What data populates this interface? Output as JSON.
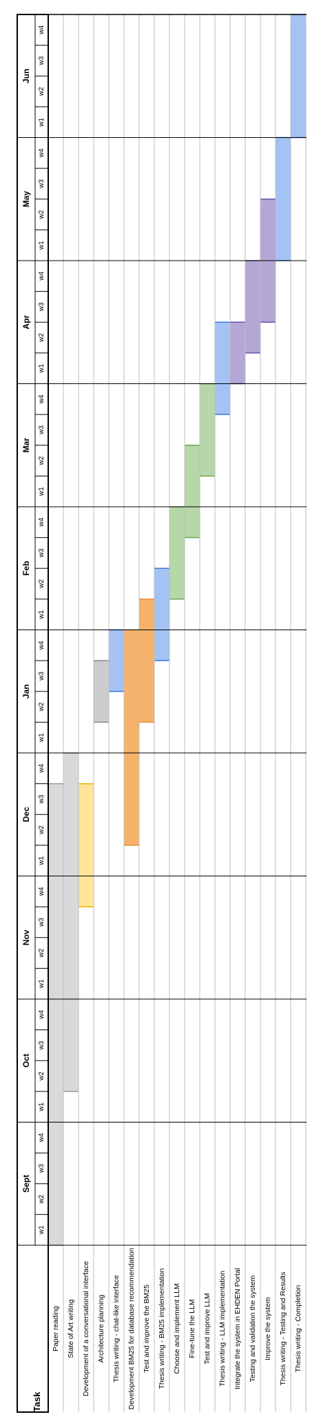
{
  "chart_data": {
    "type": "gantt",
    "task_header": "Task",
    "months": [
      {
        "label": "Sept",
        "weeks": [
          "w1",
          "w2",
          "w3",
          "w4"
        ]
      },
      {
        "label": "Oct",
        "weeks": [
          "w1",
          "w2",
          "w3",
          "w4"
        ]
      },
      {
        "label": "Nov",
        "weeks": [
          "w1",
          "w2",
          "w3",
          "w4"
        ]
      },
      {
        "label": "Dec",
        "weeks": [
          "w1",
          "w2",
          "w3",
          "w4"
        ]
      },
      {
        "label": "Jan",
        "weeks": [
          "w1",
          "w2",
          "w3",
          "w4"
        ]
      },
      {
        "label": "Feb",
        "weeks": [
          "w1",
          "w2",
          "w3",
          "w4"
        ]
      },
      {
        "label": "Mar",
        "weeks": [
          "w1",
          "w2",
          "w3",
          "w4"
        ]
      },
      {
        "label": "Apr",
        "weeks": [
          "w1",
          "w2",
          "w3",
          "w4"
        ]
      },
      {
        "label": "May",
        "weeks": [
          "w1",
          "w2",
          "w3",
          "w4"
        ]
      },
      {
        "label": "Jun",
        "weeks": [
          "w1",
          "w2",
          "w3",
          "w4"
        ]
      }
    ],
    "tasks": [
      {
        "name": "Paper reading",
        "start_week": 1,
        "end_week": 15,
        "color": "#d9d9d9",
        "edge": "#9a9a9a"
      },
      {
        "name": "State of Art writing",
        "start_week": 6,
        "end_week": 16,
        "color": "#d9d9d9",
        "edge": "#9a9a9a"
      },
      {
        "name": "Development of a conversational interface",
        "start_week": 12,
        "end_week": 15,
        "color": "#ffe599",
        "edge": "#e6b800"
      },
      {
        "name": "Architecture planning",
        "start_week": 18,
        "end_week": 19,
        "color": "#cccccc",
        "edge": "#8a8a8a"
      },
      {
        "name": "Thesis writing - chat-like interface",
        "start_week": 19,
        "end_week": 20,
        "color": "#a4c2f4",
        "edge": "#3c78d8"
      },
      {
        "name": "Development BM25 for database recommendation",
        "start_week": 14,
        "end_week": 20,
        "color": "#f6b26b",
        "edge": "#e69138"
      },
      {
        "name": "Test and improve the BM25",
        "start_week": 18,
        "end_week": 21,
        "color": "#f6b26b",
        "edge": "#e69138"
      },
      {
        "name": "Thesis writing - BM25 implementation",
        "start_week": 20,
        "end_week": 22,
        "color": "#a4c2f4",
        "edge": "#3c78d8"
      },
      {
        "name": "Choose and implement LLM",
        "start_week": 22,
        "end_week": 24,
        "color": "#b6d7a8",
        "edge": "#6aa84f"
      },
      {
        "name": "Fine-tune the LLM",
        "start_week": 24,
        "end_week": 26,
        "color": "#b6d7a8",
        "edge": "#6aa84f"
      },
      {
        "name": "Test and improve LLM",
        "start_week": 26,
        "end_week": 28,
        "color": "#b6d7a8",
        "edge": "#6aa84f"
      },
      {
        "name": "Thesis writing - LLM implementation",
        "start_week": 28,
        "end_week": 30,
        "color": "#a4c2f4",
        "edge": "#3c78d8"
      },
      {
        "name": "Integrate the system in EHDEN Portal",
        "start_week": 29,
        "end_week": 30,
        "color": "#b4a7d6",
        "edge": "#674ea7"
      },
      {
        "name": "Testing and validation the system",
        "start_week": 30,
        "end_week": 32,
        "color": "#b4a7d6",
        "edge": "#674ea7"
      },
      {
        "name": "Improve the system",
        "start_week": 31,
        "end_week": 34,
        "color": "#b4a7d6",
        "edge": "#674ea7"
      },
      {
        "name": "Thesis writing - Testing and Results",
        "start_week": 33,
        "end_week": 36,
        "color": "#a4c2f4",
        "edge": "#3c78d8"
      },
      {
        "name": "Thesis writing - Completion",
        "start_week": 37,
        "end_week": 40,
        "color": "#a4c2f4",
        "edge": "#3c78d8"
      }
    ]
  }
}
